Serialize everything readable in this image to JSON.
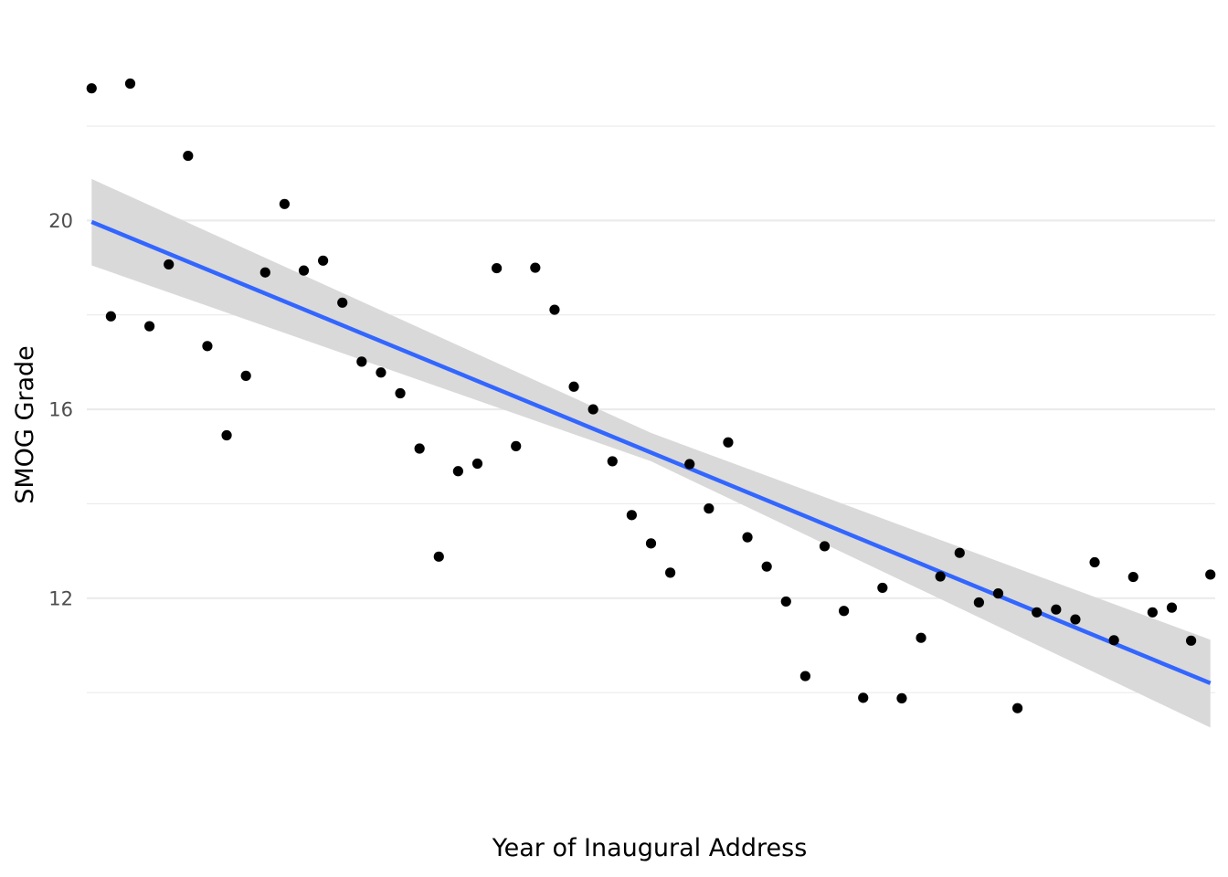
{
  "chart_data": {
    "type": "scatter",
    "title": "",
    "xlabel": "Year of Inaugural Address",
    "ylabel": "SMOG Grade",
    "x_tick_labels_shown": false,
    "ylim": [
      8.9,
      23.8
    ],
    "y_major_ticks": [
      12,
      16,
      20
    ],
    "y_tick_labels": [
      "12",
      "16",
      "20"
    ],
    "y_minor_ticks": [
      10,
      14,
      18,
      22
    ],
    "grid": true,
    "legend": "none",
    "colors": {
      "points": "#000000",
      "fit_line": "#3366ff",
      "confidence_band": "#d9d9d9",
      "grid": "#ebebeb"
    },
    "series": [
      {
        "kind": "points",
        "x": [
          1789,
          1793,
          1797,
          1801,
          1805,
          1809,
          1813,
          1817,
          1821,
          1825,
          1829,
          1833,
          1837,
          1841,
          1845,
          1849,
          1853,
          1857,
          1861,
          1865,
          1869,
          1873,
          1877,
          1881,
          1885,
          1889,
          1893,
          1897,
          1901,
          1905,
          1909,
          1913,
          1917,
          1921,
          1925,
          1929,
          1933,
          1937,
          1941,
          1945,
          1949,
          1953,
          1957,
          1961,
          1965,
          1969,
          1973,
          1977,
          1981,
          1985,
          1989,
          1993,
          1997,
          2001,
          2005,
          2009,
          2013,
          2017,
          2021
        ],
        "y": [
          22.8,
          17.97,
          22.9,
          17.76,
          19.07,
          21.37,
          17.34,
          15.45,
          16.71,
          18.9,
          20.35,
          18.94,
          19.15,
          18.26,
          17.01,
          16.78,
          16.34,
          15.17,
          12.88,
          14.69,
          14.85,
          18.99,
          15.22,
          19,
          18.11,
          16.48,
          16,
          14.9,
          13.76,
          13.16,
          12.54,
          14.84,
          13.9,
          15.3,
          13.29,
          12.67,
          11.93,
          10.35,
          13.1,
          11.73,
          9.89,
          12.22,
          9.88,
          11.16,
          12.46,
          12.96,
          11.91,
          12.1,
          9.67,
          11.7,
          11.76,
          11.55,
          12.76,
          11.11,
          12.45,
          11.7,
          11.8,
          11.1,
          12.5
        ]
      },
      {
        "kind": "linear_fit",
        "x": [
          1789,
          2021
        ],
        "y": [
          19.97,
          10.2
        ]
      },
      {
        "kind": "confidence_band",
        "x": [
          1789,
          1905,
          2021
        ],
        "y_low": [
          19.05,
          14.9,
          9.26
        ],
        "y_high": [
          20.88,
          15.5,
          11.12
        ]
      }
    ],
    "xlim": [
      1788,
      2022
    ]
  }
}
